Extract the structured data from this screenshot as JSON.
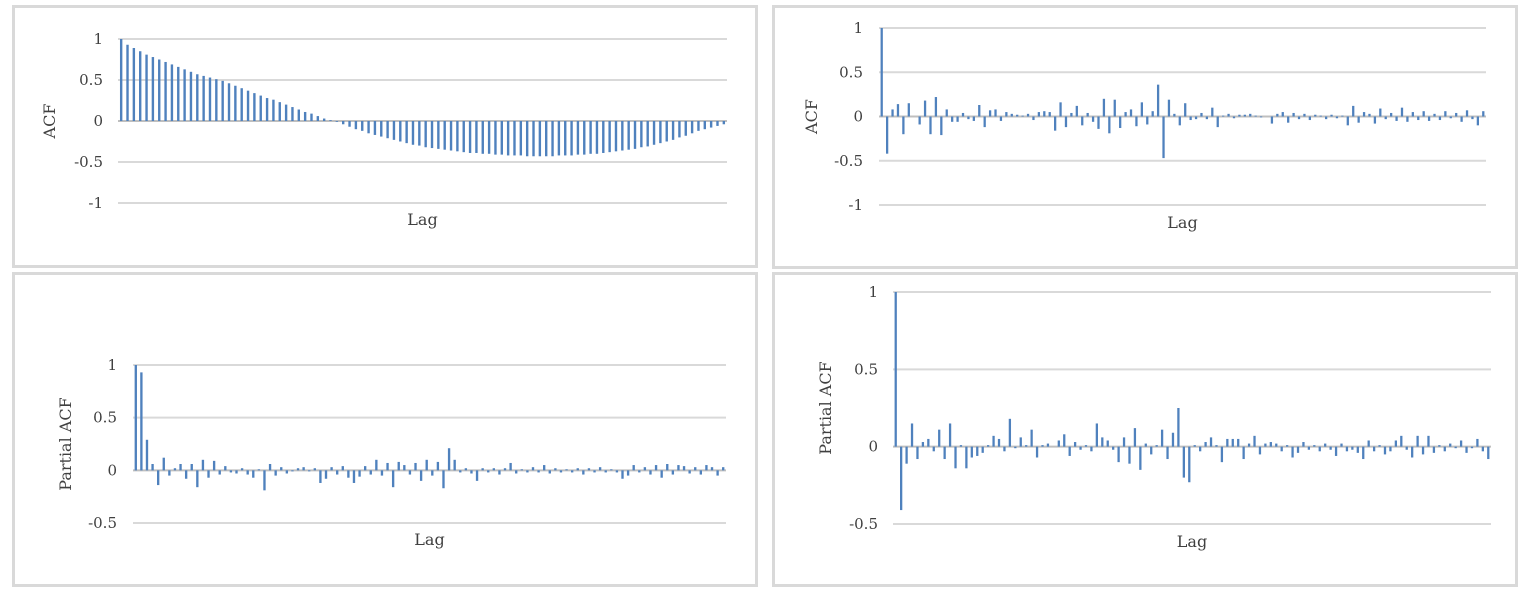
{
  "colors": {
    "bar": "#4f81bd",
    "grid": "#d9d9d9",
    "zero": "#bfbfbf",
    "text": "#404040",
    "border": "#d9d9d9"
  },
  "chart_data": [
    {
      "type": "bar",
      "xlabel": "Lag",
      "ylabel": "ACF",
      "ylim": [
        -1,
        1
      ],
      "yticks": [
        1,
        0.5,
        0,
        -0.5,
        -1
      ],
      "ytick_labels": [
        "1",
        "0.5",
        "0",
        "-0.5",
        "-1"
      ],
      "grid": true,
      "values": [
        1.0,
        0.93,
        0.89,
        0.85,
        0.81,
        0.78,
        0.75,
        0.72,
        0.69,
        0.66,
        0.63,
        0.6,
        0.57,
        0.55,
        0.53,
        0.51,
        0.49,
        0.46,
        0.43,
        0.4,
        0.37,
        0.34,
        0.31,
        0.28,
        0.26,
        0.23,
        0.2,
        0.17,
        0.14,
        0.11,
        0.09,
        0.06,
        0.03,
        0.01,
        -0.01,
        -0.04,
        -0.07,
        -0.1,
        -0.12,
        -0.15,
        -0.17,
        -0.19,
        -0.21,
        -0.23,
        -0.25,
        -0.27,
        -0.29,
        -0.3,
        -0.32,
        -0.33,
        -0.34,
        -0.35,
        -0.36,
        -0.37,
        -0.38,
        -0.39,
        -0.39,
        -0.4,
        -0.4,
        -0.41,
        -0.41,
        -0.42,
        -0.42,
        -0.42,
        -0.43,
        -0.43,
        -0.43,
        -0.43,
        -0.43,
        -0.42,
        -0.42,
        -0.42,
        -0.41,
        -0.41,
        -0.4,
        -0.4,
        -0.39,
        -0.38,
        -0.37,
        -0.36,
        -0.35,
        -0.34,
        -0.32,
        -0.31,
        -0.29,
        -0.27,
        -0.25,
        -0.23,
        -0.2,
        -0.18,
        -0.15,
        -0.12,
        -0.1,
        -0.08,
        -0.06,
        -0.04
      ]
    },
    {
      "type": "bar",
      "xlabel": "Lag",
      "ylabel": "ACF",
      "ylim": [
        -1,
        1
      ],
      "yticks": [
        1,
        0.5,
        0,
        -0.5,
        -1
      ],
      "ytick_labels": [
        "1",
        "0.5",
        "0",
        "-0.5",
        "-1"
      ],
      "grid": true,
      "values": [
        1.0,
        -0.42,
        0.08,
        0.14,
        -0.2,
        0.15,
        0.0,
        -0.09,
        0.18,
        -0.2,
        0.22,
        -0.21,
        0.08,
        -0.06,
        -0.06,
        0.04,
        -0.03,
        -0.05,
        0.13,
        -0.12,
        0.07,
        0.08,
        -0.05,
        0.05,
        0.03,
        0.02,
        0.01,
        0.03,
        -0.04,
        0.05,
        0.06,
        0.05,
        -0.16,
        0.16,
        -0.12,
        0.04,
        0.12,
        -0.1,
        0.04,
        -0.06,
        -0.14,
        0.2,
        -0.19,
        0.19,
        -0.13,
        0.05,
        0.08,
        -0.11,
        0.16,
        -0.09,
        0.06,
        0.36,
        -0.47,
        0.19,
        0.03,
        -0.1,
        0.15,
        -0.04,
        -0.03,
        0.04,
        -0.03,
        0.1,
        -0.12,
        0.01,
        0.03,
        -0.02,
        0.02,
        0.02,
        0.03,
        0.01,
        -0.01,
        0.0,
        -0.08,
        0.03,
        0.05,
        -0.07,
        0.04,
        -0.03,
        0.03,
        -0.04,
        0.02,
        0.01,
        -0.03,
        0.02,
        -0.02,
        0.01,
        -0.1,
        0.12,
        -0.07,
        0.05,
        0.03,
        -0.08,
        0.09,
        -0.03,
        0.04,
        -0.05,
        0.1,
        -0.06,
        0.05,
        -0.04,
        0.06,
        -0.05,
        0.03,
        -0.04,
        0.06,
        -0.02,
        0.04,
        -0.06,
        0.07,
        -0.03,
        -0.1,
        0.06
      ]
    },
    {
      "type": "bar",
      "xlabel": "Lag",
      "ylabel": "Partial ACF",
      "ylim": [
        -0.5,
        1
      ],
      "yticks": [
        1,
        0.5,
        0,
        -0.5
      ],
      "ytick_labels": [
        "1",
        "0.5",
        "0",
        "-0.5"
      ],
      "grid": true,
      "values": [
        1.0,
        0.93,
        0.29,
        0.06,
        -0.14,
        0.12,
        -0.05,
        0.02,
        0.06,
        -0.08,
        0.06,
        -0.16,
        0.1,
        -0.07,
        0.09,
        -0.04,
        0.04,
        -0.02,
        -0.03,
        0.02,
        -0.04,
        -0.07,
        0.01,
        -0.19,
        0.06,
        -0.05,
        0.03,
        -0.03,
        -0.01,
        0.02,
        0.03,
        -0.01,
        0.02,
        -0.12,
        -0.08,
        0.03,
        -0.04,
        0.04,
        -0.07,
        -0.12,
        -0.06,
        0.04,
        -0.04,
        0.1,
        -0.05,
        0.07,
        -0.16,
        0.08,
        0.05,
        -0.04,
        0.07,
        -0.1,
        0.1,
        -0.05,
        0.08,
        -0.17,
        0.21,
        0.1,
        -0.02,
        0.02,
        -0.03,
        -0.1,
        0.02,
        -0.02,
        0.02,
        -0.04,
        0.02,
        0.07,
        -0.03,
        0.01,
        -0.02,
        0.03,
        -0.02,
        0.05,
        -0.03,
        0.02,
        -0.02,
        0.01,
        -0.02,
        0.02,
        -0.04,
        0.02,
        -0.02,
        0.03,
        -0.02,
        0.01,
        -0.02,
        -0.08,
        -0.05,
        0.05,
        -0.02,
        0.03,
        -0.04,
        0.05,
        -0.07,
        0.06,
        -0.04,
        0.05,
        0.04,
        -0.03,
        0.03,
        -0.04,
        0.05,
        0.03,
        -0.05,
        0.03
      ]
    },
    {
      "type": "bar",
      "xlabel": "Lag",
      "ylabel": "Partial ACF",
      "ylim": [
        -0.5,
        1
      ],
      "yticks": [
        1,
        0.5,
        0,
        -0.5
      ],
      "ytick_labels": [
        "1",
        "0.5",
        "0",
        "-0.5"
      ],
      "grid": true,
      "values": [
        1.0,
        -0.41,
        -0.11,
        0.15,
        -0.08,
        0.03,
        0.05,
        -0.03,
        0.11,
        -0.08,
        0.15,
        -0.14,
        0.01,
        -0.14,
        -0.07,
        -0.06,
        -0.04,
        0.01,
        0.07,
        0.05,
        -0.03,
        0.18,
        -0.01,
        0.06,
        0.01,
        0.11,
        -0.07,
        0.01,
        0.02,
        0.0,
        0.04,
        0.08,
        -0.06,
        0.03,
        -0.02,
        0.01,
        -0.03,
        0.15,
        0.06,
        0.04,
        -0.02,
        -0.1,
        0.06,
        -0.11,
        0.12,
        -0.15,
        0.02,
        -0.05,
        0.01,
        0.11,
        -0.08,
        0.09,
        0.25,
        -0.2,
        -0.23,
        0.01,
        -0.03,
        0.03,
        0.06,
        0.01,
        -0.1,
        0.05,
        0.05,
        0.05,
        -0.08,
        0.02,
        0.07,
        -0.05,
        0.02,
        0.03,
        0.02,
        -0.03,
        0.01,
        -0.07,
        -0.04,
        0.03,
        -0.02,
        0.01,
        -0.03,
        0.02,
        -0.02,
        -0.06,
        0.02,
        -0.03,
        -0.02,
        -0.04,
        -0.08,
        0.04,
        -0.03,
        0.01,
        -0.05,
        -0.03,
        0.04,
        0.07,
        -0.02,
        -0.07,
        0.07,
        -0.05,
        0.07,
        -0.04,
        0.01,
        -0.03,
        0.02,
        -0.01,
        0.04,
        -0.04,
        -0.01,
        0.05,
        -0.03,
        -0.08
      ]
    }
  ]
}
